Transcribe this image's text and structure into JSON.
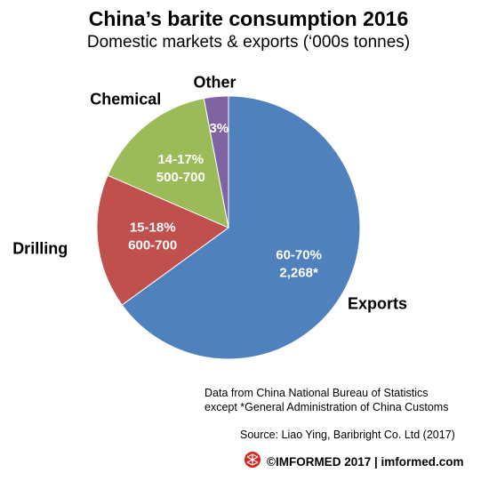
{
  "title": "China’s barite consumption 2016",
  "subtitle": "Domestic markets & exports (‘000s tonnes)",
  "chart_data": {
    "type": "pie",
    "title": "China’s barite consumption 2016",
    "subtitle": "Domestic markets & exports (‘000s tonnes)",
    "slices": [
      {
        "name": "Exports",
        "share_pct": 65,
        "label_lines": [
          "60-70%",
          "2,268*"
        ],
        "color": "#4F81BD"
      },
      {
        "name": "Drilling",
        "share_pct": 16.5,
        "label_lines": [
          "15-18%",
          "600-700"
        ],
        "color": "#C0504D"
      },
      {
        "name": "Chemical",
        "share_pct": 15.5,
        "label_lines": [
          "14-17%",
          "500-700"
        ],
        "color": "#9BBB59"
      },
      {
        "name": "Other",
        "share_pct": 3,
        "label_lines": [
          "3%"
        ],
        "color": "#8064A2"
      }
    ]
  },
  "notes": {
    "line1": "Data from China National Bureau of Statistics",
    "line2": "except *General Administration of China Customs",
    "source": "Source: Liao Ying, Baribright Co. Ltd (2017)"
  },
  "footer": {
    "text": "©IMFORMED 2017  | imformed.com",
    "logo_icon": "imformed-logo-icon",
    "logo_color": "#D7261E"
  }
}
